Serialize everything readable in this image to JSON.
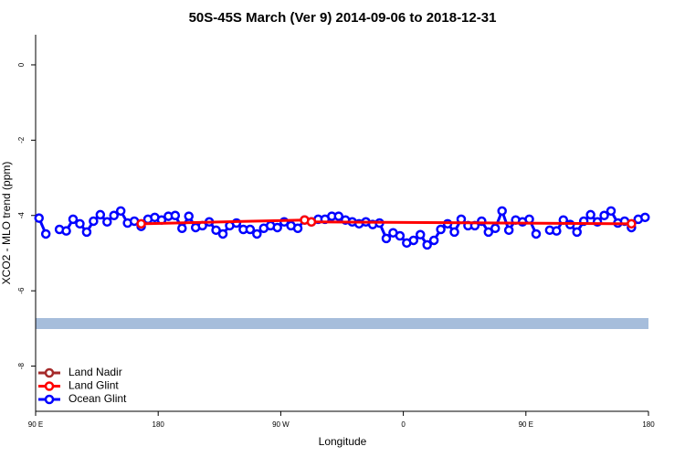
{
  "chart_data": {
    "type": "line",
    "title": "50S-45S March (Ver 9)   2014-09-06 to 2018-12-31",
    "x_label": "Longitude",
    "y_label": "XCO2 - MLO trend (ppm)",
    "xlim": [
      90,
      540
    ],
    "ylim": [
      -9.2,
      0.8
    ],
    "xticks": [
      {
        "value": 90,
        "label": "90 E"
      },
      180,
      {
        "value": 270,
        "label": "90 W"
      },
      {
        "value": 360,
        "label": "0"
      },
      {
        "value": 450,
        "label": "90 E"
      },
      {
        "value": 540,
        "label": "180"
      }
    ],
    "yticks": [
      0,
      -2,
      -4,
      -6,
      -8
    ],
    "legend": "bottom-left",
    "series": [
      {
        "name": "Land Nadir",
        "color": "#a52a2a",
        "x": [],
        "values": []
      },
      {
        "name": "Land Glint",
        "color": "#ff0000",
        "x": [
          167.5,
          287.5,
          292.5,
          527.5
        ],
        "values": [
          -4.22,
          -4.12,
          -4.17,
          -4.22
        ]
      },
      {
        "name": "Ocean Glint",
        "color": "#0000ff",
        "x": [
          92.5,
          97.5,
          102.5,
          107.5,
          112.5,
          117.5,
          122.5,
          127.5,
          132.5,
          137.5,
          142.5,
          147.5,
          152.5,
          157.5,
          162.5,
          167.5,
          172.5,
          177.5,
          182.5,
          187.5,
          192.5,
          197.5,
          202.5,
          207.5,
          212.5,
          217.5,
          222.5,
          227.5,
          232.5,
          237.5,
          242.5,
          247.5,
          252.5,
          257.5,
          262.5,
          267.5,
          272.5,
          277.5,
          282.5,
          287.5,
          292.5,
          297.5,
          302.5,
          307.5,
          312.5,
          317.5,
          322.5,
          327.5,
          332.5,
          337.5,
          342.5,
          347.5,
          352.5,
          357.5,
          362.5,
          367.5,
          372.5,
          377.5,
          382.5,
          387.5,
          392.5,
          397.5,
          402.5,
          407.5,
          412.5,
          417.5,
          422.5,
          427.5,
          432.5,
          437.5,
          442.5,
          447.5,
          452.5,
          457.5,
          462.5,
          467.5,
          472.5,
          477.5,
          482.5,
          487.5,
          492.5,
          497.5,
          502.5,
          507.5,
          512.5,
          517.5,
          522.5,
          527.5,
          532.5,
          537.5
        ],
        "values": [
          -4.07,
          -4.49,
          null,
          -4.37,
          -4.41,
          -4.1,
          -4.22,
          -4.44,
          -4.15,
          -3.98,
          -4.17,
          -4.0,
          -3.88,
          -4.2,
          -4.15,
          -4.29,
          -4.1,
          -4.05,
          -4.12,
          -4.02,
          -4.0,
          -4.34,
          -4.02,
          -4.32,
          -4.27,
          -4.17,
          -4.39,
          -4.49,
          -4.27,
          -4.2,
          -4.37,
          -4.37,
          -4.49,
          -4.34,
          -4.27,
          -4.32,
          -4.17,
          -4.27,
          -4.34,
          -4.12,
          -4.17,
          -4.1,
          -4.1,
          -4.02,
          -4.02,
          -4.12,
          -4.17,
          -4.22,
          -4.17,
          -4.24,
          -4.2,
          -4.61,
          -4.46,
          -4.54,
          -4.73,
          -4.66,
          -4.51,
          -4.78,
          -4.66,
          -4.37,
          -4.22,
          -4.44,
          -4.1,
          -4.27,
          -4.27,
          -4.15,
          -4.44,
          -4.34,
          -3.88,
          -4.39,
          -4.12,
          -4.17,
          -4.1,
          -4.49,
          null,
          -4.39,
          -4.41,
          -4.12,
          -4.24,
          -4.44,
          -4.15,
          -3.98,
          -4.17,
          -4.0,
          -3.88,
          -4.2,
          -4.15,
          -4.32,
          -4.1,
          -4.05
        ]
      }
    ]
  }
}
